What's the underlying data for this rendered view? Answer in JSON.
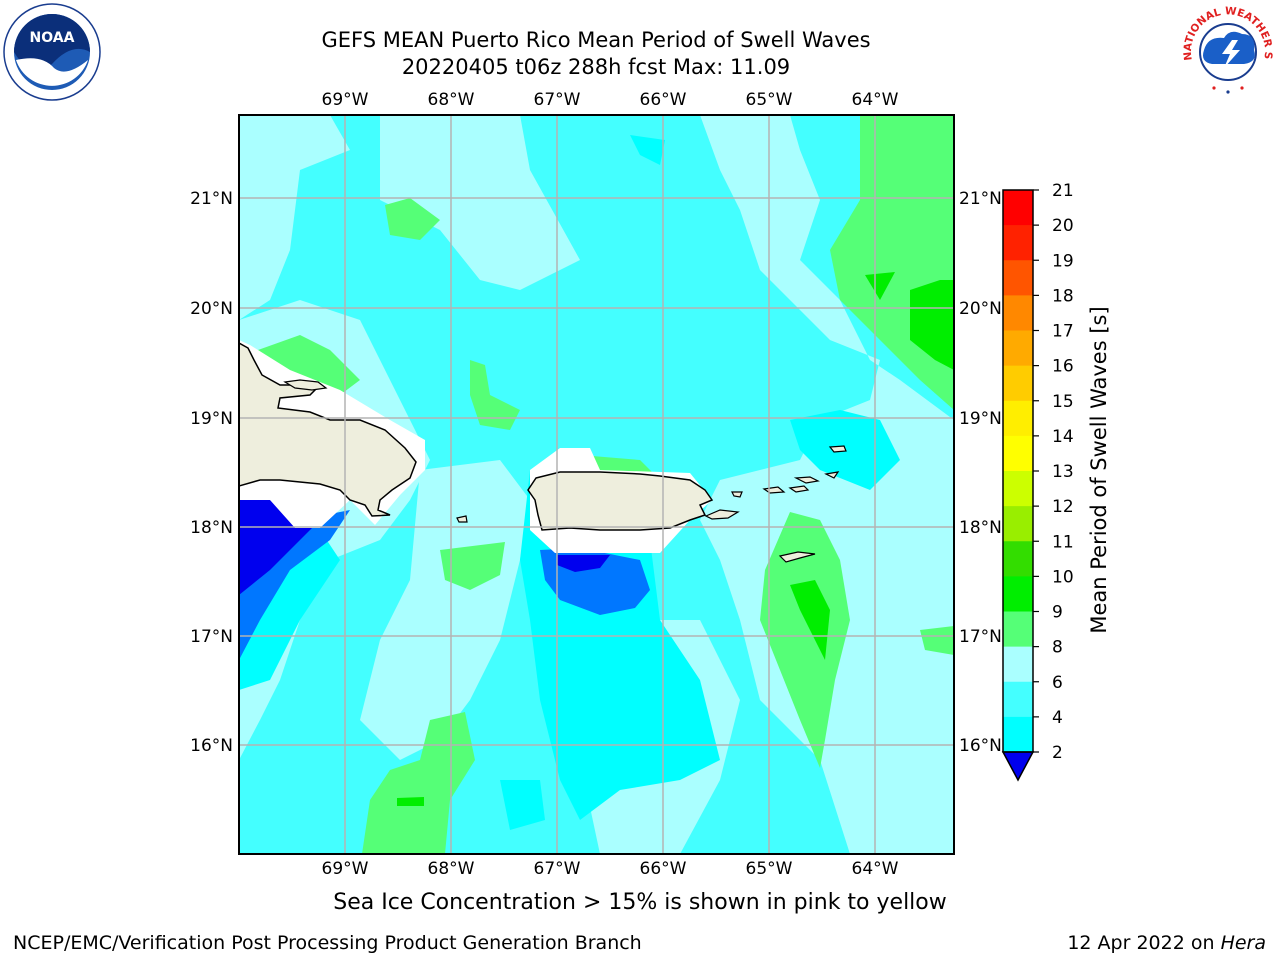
{
  "title": {
    "line1": "GEFS MEAN Puerto Rico Mean Period of Swell Waves",
    "line2": "20220405 t06z 288h fcst   Max: 11.09"
  },
  "map": {
    "lon_labels": [
      "69°W",
      "68°W",
      "67°W",
      "66°W",
      "65°W",
      "64°W"
    ],
    "lat_labels": [
      "21°N",
      "20°N",
      "19°N",
      "18°N",
      "17°N",
      "16°N"
    ],
    "lon_range": [
      -70.0,
      -63.25
    ],
    "lat_range": [
      15.0,
      21.75
    ]
  },
  "colorbar": {
    "label": "Mean Period of Swell Waves [s]",
    "ticks": [
      "21",
      "20",
      "19",
      "18",
      "17",
      "16",
      "15",
      "14",
      "13",
      "12",
      "11",
      "10",
      "9",
      "8",
      "6",
      "4",
      "2"
    ],
    "colors": [
      "#0000ee",
      "#0077ff",
      "#00ffff",
      "#44ffff",
      "#aaffff",
      "#55ff77",
      "#00ee00",
      "#33dd00",
      "#99ee00",
      "#ccff00",
      "#ffff00",
      "#ffee00",
      "#ffcc00",
      "#ffaa00",
      "#ff8800",
      "#ff5500",
      "#ff2200",
      "#ff0000"
    ]
  },
  "footer": {
    "ice_note": "Sea Ice Concentration > 15% is shown in pink to yellow",
    "credit": "NCEP/EMC/Verification Post Processing Product Generation Branch",
    "date_prefix": "12 Apr 2022 on ",
    "date_machine": "Hera"
  },
  "logos": {
    "left": "noaa-logo",
    "right": "national-weather-service-logo",
    "nws_text": "NATIONAL WEATHER SERVICE",
    "noaa_text": "NOAA"
  }
}
